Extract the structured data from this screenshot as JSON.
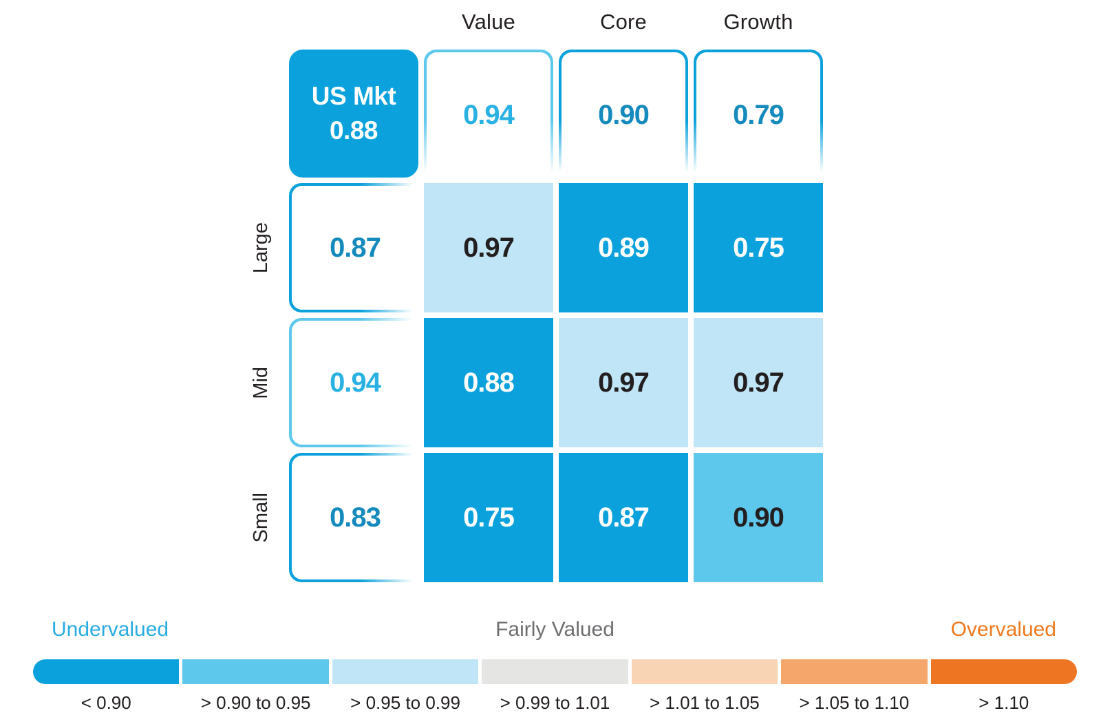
{
  "chart_data": {
    "type": "heatmap",
    "column_headers": [
      "Value",
      "Core",
      "Growth"
    ],
    "row_headers": [
      "Large",
      "Mid",
      "Small"
    ],
    "overall": {
      "label": "US Mkt",
      "value": "0.88",
      "fill": "#0ba1dc"
    },
    "column_totals": [
      {
        "value": "0.94",
        "bucket": 1
      },
      {
        "value": "0.90",
        "bucket": 0
      },
      {
        "value": "0.79",
        "bucket": 0
      }
    ],
    "row_totals": [
      {
        "value": "0.87",
        "bucket": 0
      },
      {
        "value": "0.94",
        "bucket": 1
      },
      {
        "value": "0.83",
        "bucket": 0
      }
    ],
    "cells": [
      [
        {
          "value": "0.97",
          "bucket": 2
        },
        {
          "value": "0.89",
          "bucket": 0
        },
        {
          "value": "0.75",
          "bucket": 0
        }
      ],
      [
        {
          "value": "0.88",
          "bucket": 0
        },
        {
          "value": "0.97",
          "bucket": 2
        },
        {
          "value": "0.97",
          "bucket": 2
        }
      ],
      [
        {
          "value": "0.75",
          "bucket": 0
        },
        {
          "value": "0.87",
          "bucket": 0
        },
        {
          "value": "0.90",
          "bucket": 1
        }
      ]
    ],
    "buckets": [
      {
        "label": "< 0.90",
        "color": "#0ba1dc"
      },
      {
        "label": "> 0.90 to 0.95",
        "color": "#5ec8ec"
      },
      {
        "label": "> 0.95 to 0.99",
        "color": "#c0e5f6"
      },
      {
        "label": "> 0.99 to 1.01",
        "color": "#e5e5e4"
      },
      {
        "label": "> 1.01 to 1.05",
        "color": "#f8d3b4"
      },
      {
        "label": "> 1.05 to 1.10",
        "color": "#f5a66b"
      },
      {
        "label": "> 1.10",
        "color": "#ee7623"
      }
    ],
    "number_color_dark": "#148abd",
    "number_color_light": "#29b1e3",
    "cell_text_dark": "#231f20",
    "cell_text_light": "#ffffff",
    "legend": {
      "undervalued_label": "Undervalued",
      "fairly_valued_label": "Fairly Valued",
      "overvalued_label": "Overvalued",
      "undervalued_color": "#29ace3",
      "fairly_valued_color": "#6d6e70",
      "overvalued_color": "#f0791f"
    }
  }
}
